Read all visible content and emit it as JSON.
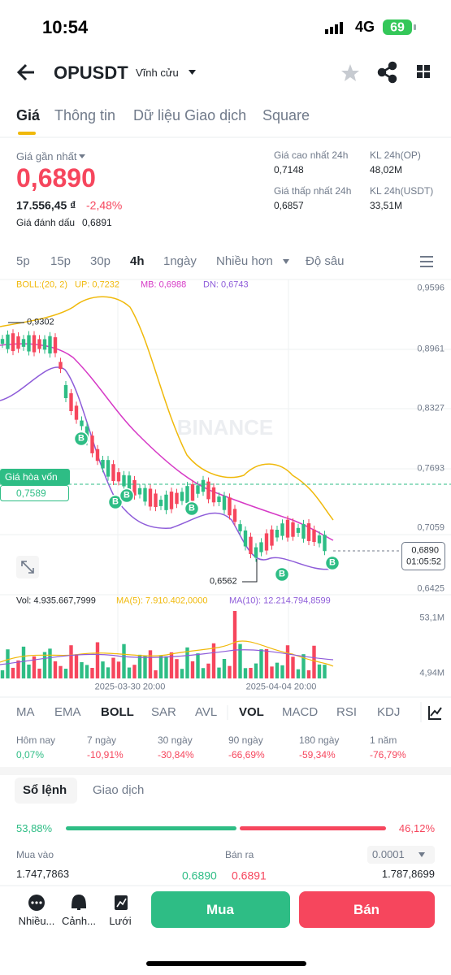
{
  "status_bar": {
    "time": "10:54",
    "network": "4G",
    "battery": "69"
  },
  "header": {
    "symbol": "OPUSDT",
    "contract": "Vĩnh cửu"
  },
  "tabs": [
    "Giá",
    "Thông tin",
    "Dữ liệu Giao dịch",
    "Square"
  ],
  "price": {
    "last_label": "Giá gần nhất",
    "last": "0,6890",
    "fiat": "17.556,45 ₫",
    "change": "-2,48%",
    "mark_label": "Giá đánh dấu",
    "mark": "0,6891"
  },
  "stats": [
    {
      "label": "Giá cao nhất 24h",
      "value": "0,7148"
    },
    {
      "label": "KL 24h(OP)",
      "value": "48,02M"
    },
    {
      "label": "Giá thấp nhất 24h",
      "value": "0,6857"
    },
    {
      "label": "KL 24h(USDT)",
      "value": "33,51M"
    }
  ],
  "intervals": [
    "5p",
    "15p",
    "30p",
    "4h",
    "1ngày",
    "Nhiều hơn",
    "Độ sâu"
  ],
  "chart": {
    "boll": [
      "BOLL:(20, 2)",
      "UP: 0,7232",
      "MB: 0,6988",
      "DN: 0,6743"
    ],
    "y_labels": [
      "0,9596",
      "0,8961",
      "0,8327",
      "0,7693",
      "0,7059",
      "0,6425"
    ],
    "high_note": "0,9302",
    "low_note": "0,6562",
    "watermark": "BINANCE",
    "trade_marker": "B",
    "breakeven_label": "Giá hòa vốn",
    "breakeven": "0,7589",
    "current_price": "0,6890",
    "countdown": "01:05:52"
  },
  "volume": {
    "labels": [
      "Vol: 4.935.667,7999",
      "MA(5): 7.910.402,0000",
      "MA(10): 12.214.794,8599"
    ],
    "y_labels": [
      "53,1M",
      "4,94M"
    ],
    "dates": [
      "2025-03-30 20:00",
      "2025-04-04 20:00"
    ]
  },
  "indicators": [
    "MA",
    "EMA",
    "BOLL",
    "SAR",
    "AVL",
    "VOL",
    "MACD",
    "RSI",
    "KDJ"
  ],
  "performance": [
    {
      "label": "Hôm nay",
      "value": "0,07%"
    },
    {
      "label": "7 ngày",
      "value": "-10,91%"
    },
    {
      "label": "30 ngày",
      "value": "-30,84%"
    },
    {
      "label": "90 ngày",
      "value": "-66,69%"
    },
    {
      "label": "180 ngày",
      "value": "-59,34%"
    },
    {
      "label": "1 năm",
      "value": "-76,79%"
    }
  ],
  "orderbook": {
    "tabs": [
      "Sổ lệnh",
      "Giao dịch"
    ],
    "buy_pct": "53,88%",
    "sell_pct": "46,12%",
    "buy_label": "Mua vào",
    "sell_label": "Bán ra",
    "precision": "0.0001",
    "buy_volume": "1.747,7863",
    "bid": "0.6890",
    "ask": "0.6891",
    "sell_volume": "1.787,8699"
  },
  "bottom": {
    "nav": [
      "Nhiều...",
      "Cảnh...",
      "Lưới"
    ],
    "buy": "Mua",
    "sell": "Bán"
  }
}
